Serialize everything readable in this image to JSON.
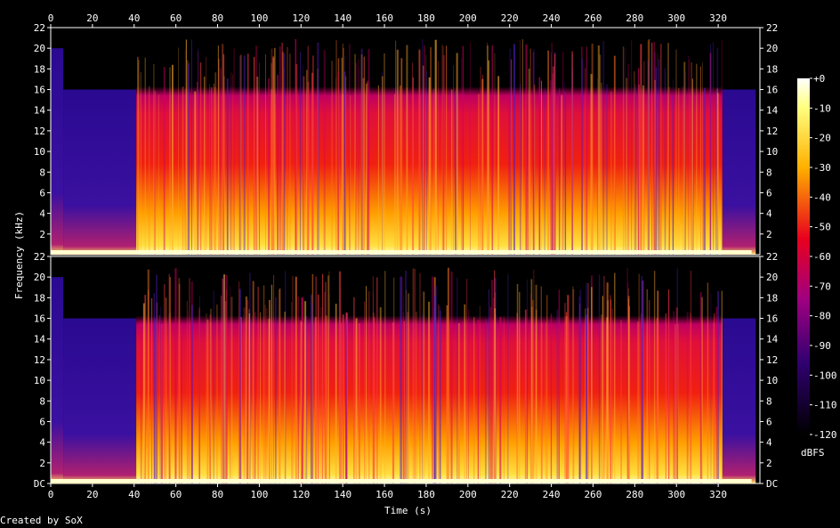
{
  "chart_data": {
    "type": "heatmap",
    "title": "",
    "xlabel": "Time (s)",
    "ylabel": "Frequency (kHz)",
    "x_ticks": [
      "0",
      "20",
      "40",
      "60",
      "80",
      "100",
      "120",
      "140",
      "160",
      "180",
      "200",
      "220",
      "240",
      "260",
      "280",
      "300",
      "320"
    ],
    "xlim": [
      0,
      340
    ],
    "channels": [
      {
        "name": "",
        "y_ticks_left": [
          "22",
          "20",
          "18",
          "16",
          "14",
          "12",
          "10",
          "8",
          "6",
          "4",
          "2"
        ],
        "y_ticks_right": [
          "22",
          "20",
          "18",
          "16",
          "14",
          "12",
          "10",
          "8",
          "6",
          "4",
          "2"
        ],
        "ylim": [
          0,
          22
        ]
      },
      {
        "name": "",
        "y_ticks_left": [
          "22",
          "20",
          "18",
          "16",
          "14",
          "12",
          "10",
          "8",
          "6",
          "4",
          "2",
          "DC"
        ],
        "y_ticks_right": [
          "22",
          "20",
          "18",
          "16",
          "14",
          "12",
          "10",
          "8",
          "6",
          "4",
          "2",
          "DC"
        ],
        "ylim": [
          0,
          22
        ]
      }
    ],
    "colorbar": {
      "label": "dBFS",
      "ticks": [
        "+0",
        "-10",
        "-20",
        "-30",
        "-40",
        "-50",
        "-60",
        "-70",
        "-80",
        "-90",
        "-100",
        "-110",
        "-120"
      ],
      "range": [
        -120,
        0
      ]
    },
    "grid": false,
    "colors": {
      "background": "#000000",
      "low": "#140050",
      "mid": "#e0002a",
      "high": "#ffff80",
      "peak": "#ffffff"
    }
  },
  "footer": {
    "credit": "Created by SoX"
  }
}
